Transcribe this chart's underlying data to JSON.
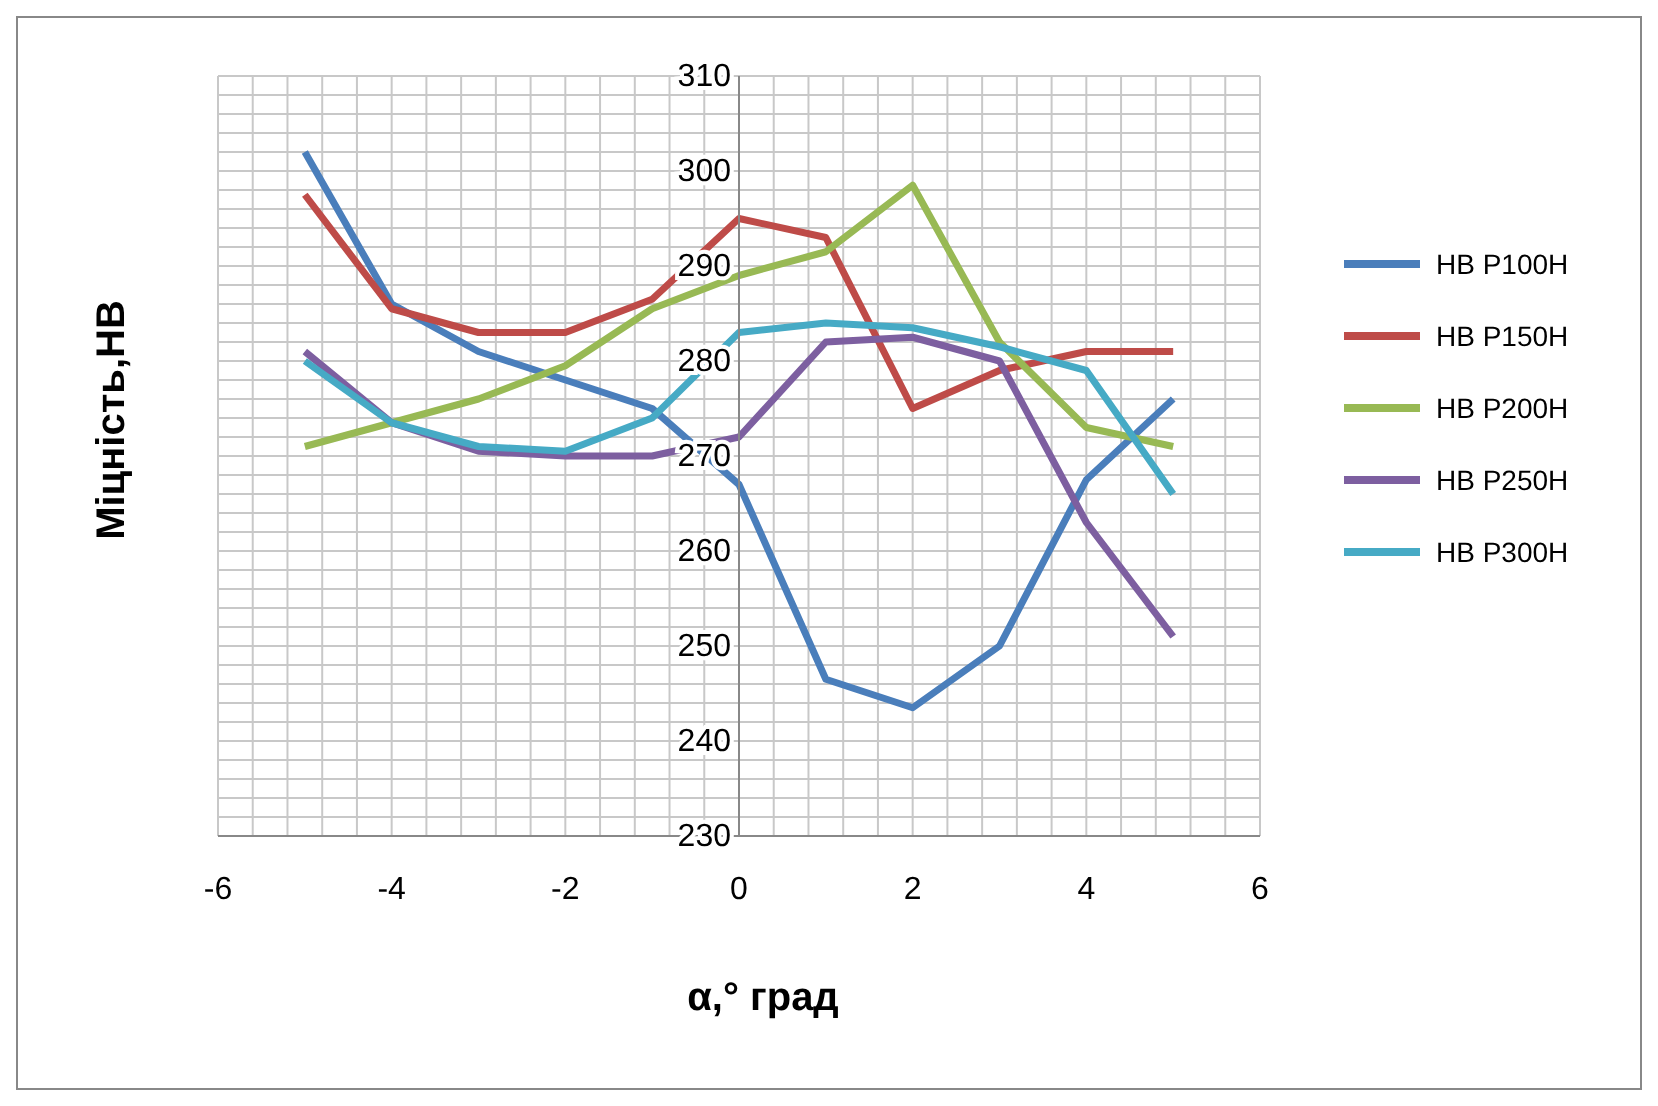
{
  "chart_data": {
    "type": "line",
    "xlabel": "α,°  град",
    "ylabel": "Міцність,НВ",
    "x": [
      -5,
      -4,
      -3,
      -2,
      -1,
      0,
      1,
      2,
      3,
      4,
      5
    ],
    "xlim": [
      -6,
      6
    ],
    "ylim": [
      230,
      310
    ],
    "xticks": [
      -6,
      {
        "value": -5.6,
        "label": null
      },
      {
        "value": -5.2,
        "label": null
      },
      {
        "value": -4.8,
        "label": null
      },
      {
        "value": -4.4,
        "label": null
      },
      -4,
      {
        "value": -3.6,
        "label": null
      },
      {
        "value": -3.2,
        "label": null
      },
      {
        "value": -2.8,
        "label": null
      },
      {
        "value": -2.4,
        "label": null
      },
      -2,
      {
        "value": -1.6,
        "label": null
      },
      {
        "value": -1.2,
        "label": null
      },
      {
        "value": -0.8,
        "label": null
      },
      {
        "value": -0.4,
        "label": null
      },
      0,
      {
        "value": 0.4,
        "label": null
      },
      {
        "value": 0.8,
        "label": null
      },
      {
        "value": 1.2,
        "label": null
      },
      {
        "value": 1.6,
        "label": null
      },
      2,
      {
        "value": 2.4,
        "label": null
      },
      {
        "value": 2.8,
        "label": null
      },
      {
        "value": 3.2,
        "label": null
      },
      {
        "value": 3.6,
        "label": null
      },
      4,
      {
        "value": 4.4,
        "label": null
      },
      {
        "value": 4.8,
        "label": null
      },
      {
        "value": 5.2,
        "label": null
      },
      {
        "value": 5.6,
        "label": null
      },
      6
    ],
    "yticks": [
      230,
      {
        "value": 232,
        "label": null
      },
      {
        "value": 234,
        "label": null
      },
      {
        "value": 236,
        "label": null
      },
      {
        "value": 238,
        "label": null
      },
      240,
      {
        "value": 242,
        "label": null
      },
      {
        "value": 244,
        "label": null
      },
      {
        "value": 246,
        "label": null
      },
      {
        "value": 248,
        "label": null
      },
      250,
      {
        "value": 252,
        "label": null
      },
      {
        "value": 254,
        "label": null
      },
      {
        "value": 256,
        "label": null
      },
      {
        "value": 258,
        "label": null
      },
      260,
      {
        "value": 262,
        "label": null
      },
      {
        "value": 264,
        "label": null
      },
      {
        "value": 266,
        "label": null
      },
      {
        "value": 268,
        "label": null
      },
      270,
      {
        "value": 272,
        "label": null
      },
      {
        "value": 274,
        "label": null
      },
      {
        "value": 276,
        "label": null
      },
      {
        "value": 278,
        "label": null
      },
      280,
      {
        "value": 282,
        "label": null
      },
      {
        "value": 284,
        "label": null
      },
      {
        "value": 286,
        "label": null
      },
      {
        "value": 288,
        "label": null
      },
      290,
      {
        "value": 292,
        "label": null
      },
      {
        "value": 294,
        "label": null
      },
      {
        "value": 296,
        "label": null
      },
      {
        "value": 298,
        "label": null
      },
      300,
      {
        "value": 302,
        "label": null
      },
      {
        "value": 304,
        "label": null
      },
      {
        "value": 306,
        "label": null
      },
      {
        "value": 308,
        "label": null
      },
      310
    ],
    "grid": true,
    "legend": "right",
    "marker": "none",
    "series": [
      {
        "name": "HB P100H",
        "color": "#4a7ebb",
        "values": [
          302,
          286,
          281,
          278,
          275,
          267,
          246.5,
          243.5,
          250,
          267.5,
          276
        ]
      },
      {
        "name": "HB P150H",
        "color": "#be4b48",
        "values": [
          297.5,
          285.5,
          283,
          283,
          286.5,
          295,
          293,
          275,
          279,
          281,
          281
        ]
      },
      {
        "name": "HB P200H",
        "color": "#98b954",
        "values": [
          271,
          273.5,
          276,
          279.5,
          285.5,
          289,
          291.5,
          298.5,
          282,
          273,
          271
        ]
      },
      {
        "name": "HB P250H",
        "color": "#7d5fa0",
        "values": [
          281,
          273.5,
          270.5,
          270,
          270,
          272,
          282,
          282.5,
          280,
          263,
          251
        ]
      },
      {
        "name": "HB P300H",
        "color": "#46aac5",
        "values": [
          280,
          273.5,
          271,
          270.5,
          274,
          283,
          284,
          283.5,
          281.5,
          279,
          266
        ]
      }
    ]
  }
}
